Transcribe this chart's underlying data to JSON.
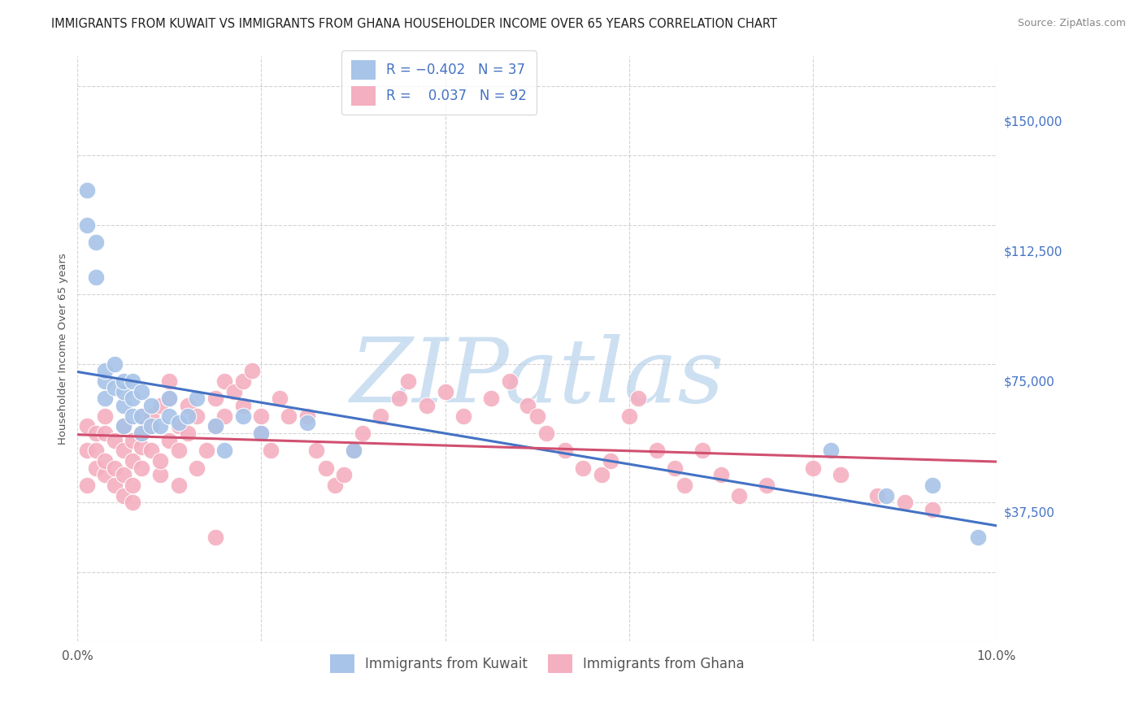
{
  "title": "IMMIGRANTS FROM KUWAIT VS IMMIGRANTS FROM GHANA HOUSEHOLDER INCOME OVER 65 YEARS CORRELATION CHART",
  "source": "Source: ZipAtlas.com",
  "ylabel": "Householder Income Over 65 years",
  "xlim": [
    0.0,
    0.1
  ],
  "ylim": [
    0,
    168750
  ],
  "yticks": [
    0,
    37500,
    75000,
    112500,
    150000
  ],
  "ytick_labels": [
    "",
    "$37,500",
    "$75,000",
    "$112,500",
    "$150,000"
  ],
  "xticks": [
    0.0,
    0.02,
    0.04,
    0.06,
    0.08,
    0.1
  ],
  "kuwait_R": -0.402,
  "kuwait_N": 37,
  "ghana_R": 0.037,
  "ghana_N": 92,
  "kuwait_color": "#a8c4e8",
  "ghana_color": "#f4afc0",
  "kuwait_line_color": "#4472c4",
  "ghana_line_color": "#d05070",
  "background_color": "#ffffff",
  "grid_color": "#c8c8c8",
  "watermark_color": "#cde0f2",
  "kuwait_x": [
    0.001,
    0.001,
    0.002,
    0.002,
    0.003,
    0.003,
    0.003,
    0.004,
    0.004,
    0.005,
    0.005,
    0.005,
    0.005,
    0.006,
    0.006,
    0.006,
    0.007,
    0.007,
    0.007,
    0.008,
    0.008,
    0.009,
    0.01,
    0.01,
    0.011,
    0.012,
    0.013,
    0.015,
    0.016,
    0.018,
    0.02,
    0.025,
    0.03,
    0.082,
    0.088,
    0.093,
    0.098
  ],
  "kuwait_y": [
    130000,
    120000,
    115000,
    105000,
    75000,
    70000,
    78000,
    73000,
    80000,
    68000,
    72000,
    75000,
    62000,
    65000,
    70000,
    75000,
    60000,
    65000,
    72000,
    62000,
    68000,
    62000,
    65000,
    70000,
    63000,
    65000,
    70000,
    62000,
    55000,
    65000,
    60000,
    63000,
    55000,
    55000,
    42000,
    45000,
    30000
  ],
  "ghana_x": [
    0.001,
    0.001,
    0.001,
    0.002,
    0.002,
    0.002,
    0.003,
    0.003,
    0.003,
    0.003,
    0.004,
    0.004,
    0.004,
    0.005,
    0.005,
    0.005,
    0.005,
    0.006,
    0.006,
    0.006,
    0.006,
    0.007,
    0.007,
    0.007,
    0.007,
    0.008,
    0.008,
    0.008,
    0.009,
    0.009,
    0.009,
    0.01,
    0.01,
    0.01,
    0.011,
    0.011,
    0.011,
    0.012,
    0.012,
    0.013,
    0.013,
    0.014,
    0.015,
    0.015,
    0.015,
    0.016,
    0.016,
    0.017,
    0.018,
    0.018,
    0.019,
    0.02,
    0.02,
    0.021,
    0.022,
    0.023,
    0.025,
    0.026,
    0.027,
    0.028,
    0.029,
    0.03,
    0.031,
    0.033,
    0.035,
    0.036,
    0.038,
    0.04,
    0.042,
    0.045,
    0.047,
    0.049,
    0.05,
    0.051,
    0.053,
    0.055,
    0.057,
    0.058,
    0.06,
    0.061,
    0.063,
    0.065,
    0.066,
    0.068,
    0.07,
    0.072,
    0.075,
    0.08,
    0.083,
    0.087,
    0.09,
    0.093
  ],
  "ghana_y": [
    62000,
    55000,
    45000,
    60000,
    50000,
    55000,
    48000,
    52000,
    60000,
    65000,
    45000,
    50000,
    58000,
    42000,
    48000,
    55000,
    62000,
    40000,
    45000,
    52000,
    58000,
    50000,
    56000,
    60000,
    65000,
    55000,
    62000,
    65000,
    48000,
    52000,
    68000,
    58000,
    70000,
    75000,
    45000,
    55000,
    62000,
    68000,
    60000,
    65000,
    50000,
    55000,
    62000,
    70000,
    30000,
    75000,
    65000,
    72000,
    68000,
    75000,
    78000,
    65000,
    60000,
    55000,
    70000,
    65000,
    65000,
    55000,
    50000,
    45000,
    48000,
    55000,
    60000,
    65000,
    70000,
    75000,
    68000,
    72000,
    65000,
    70000,
    75000,
    68000,
    65000,
    60000,
    55000,
    50000,
    48000,
    52000,
    65000,
    70000,
    55000,
    50000,
    45000,
    55000,
    48000,
    42000,
    45000,
    50000,
    48000,
    42000,
    40000,
    38000
  ],
  "title_fontsize": 10.5,
  "axis_label_fontsize": 9.5,
  "tick_fontsize": 11,
  "legend_fontsize": 12,
  "source_fontsize": 9
}
